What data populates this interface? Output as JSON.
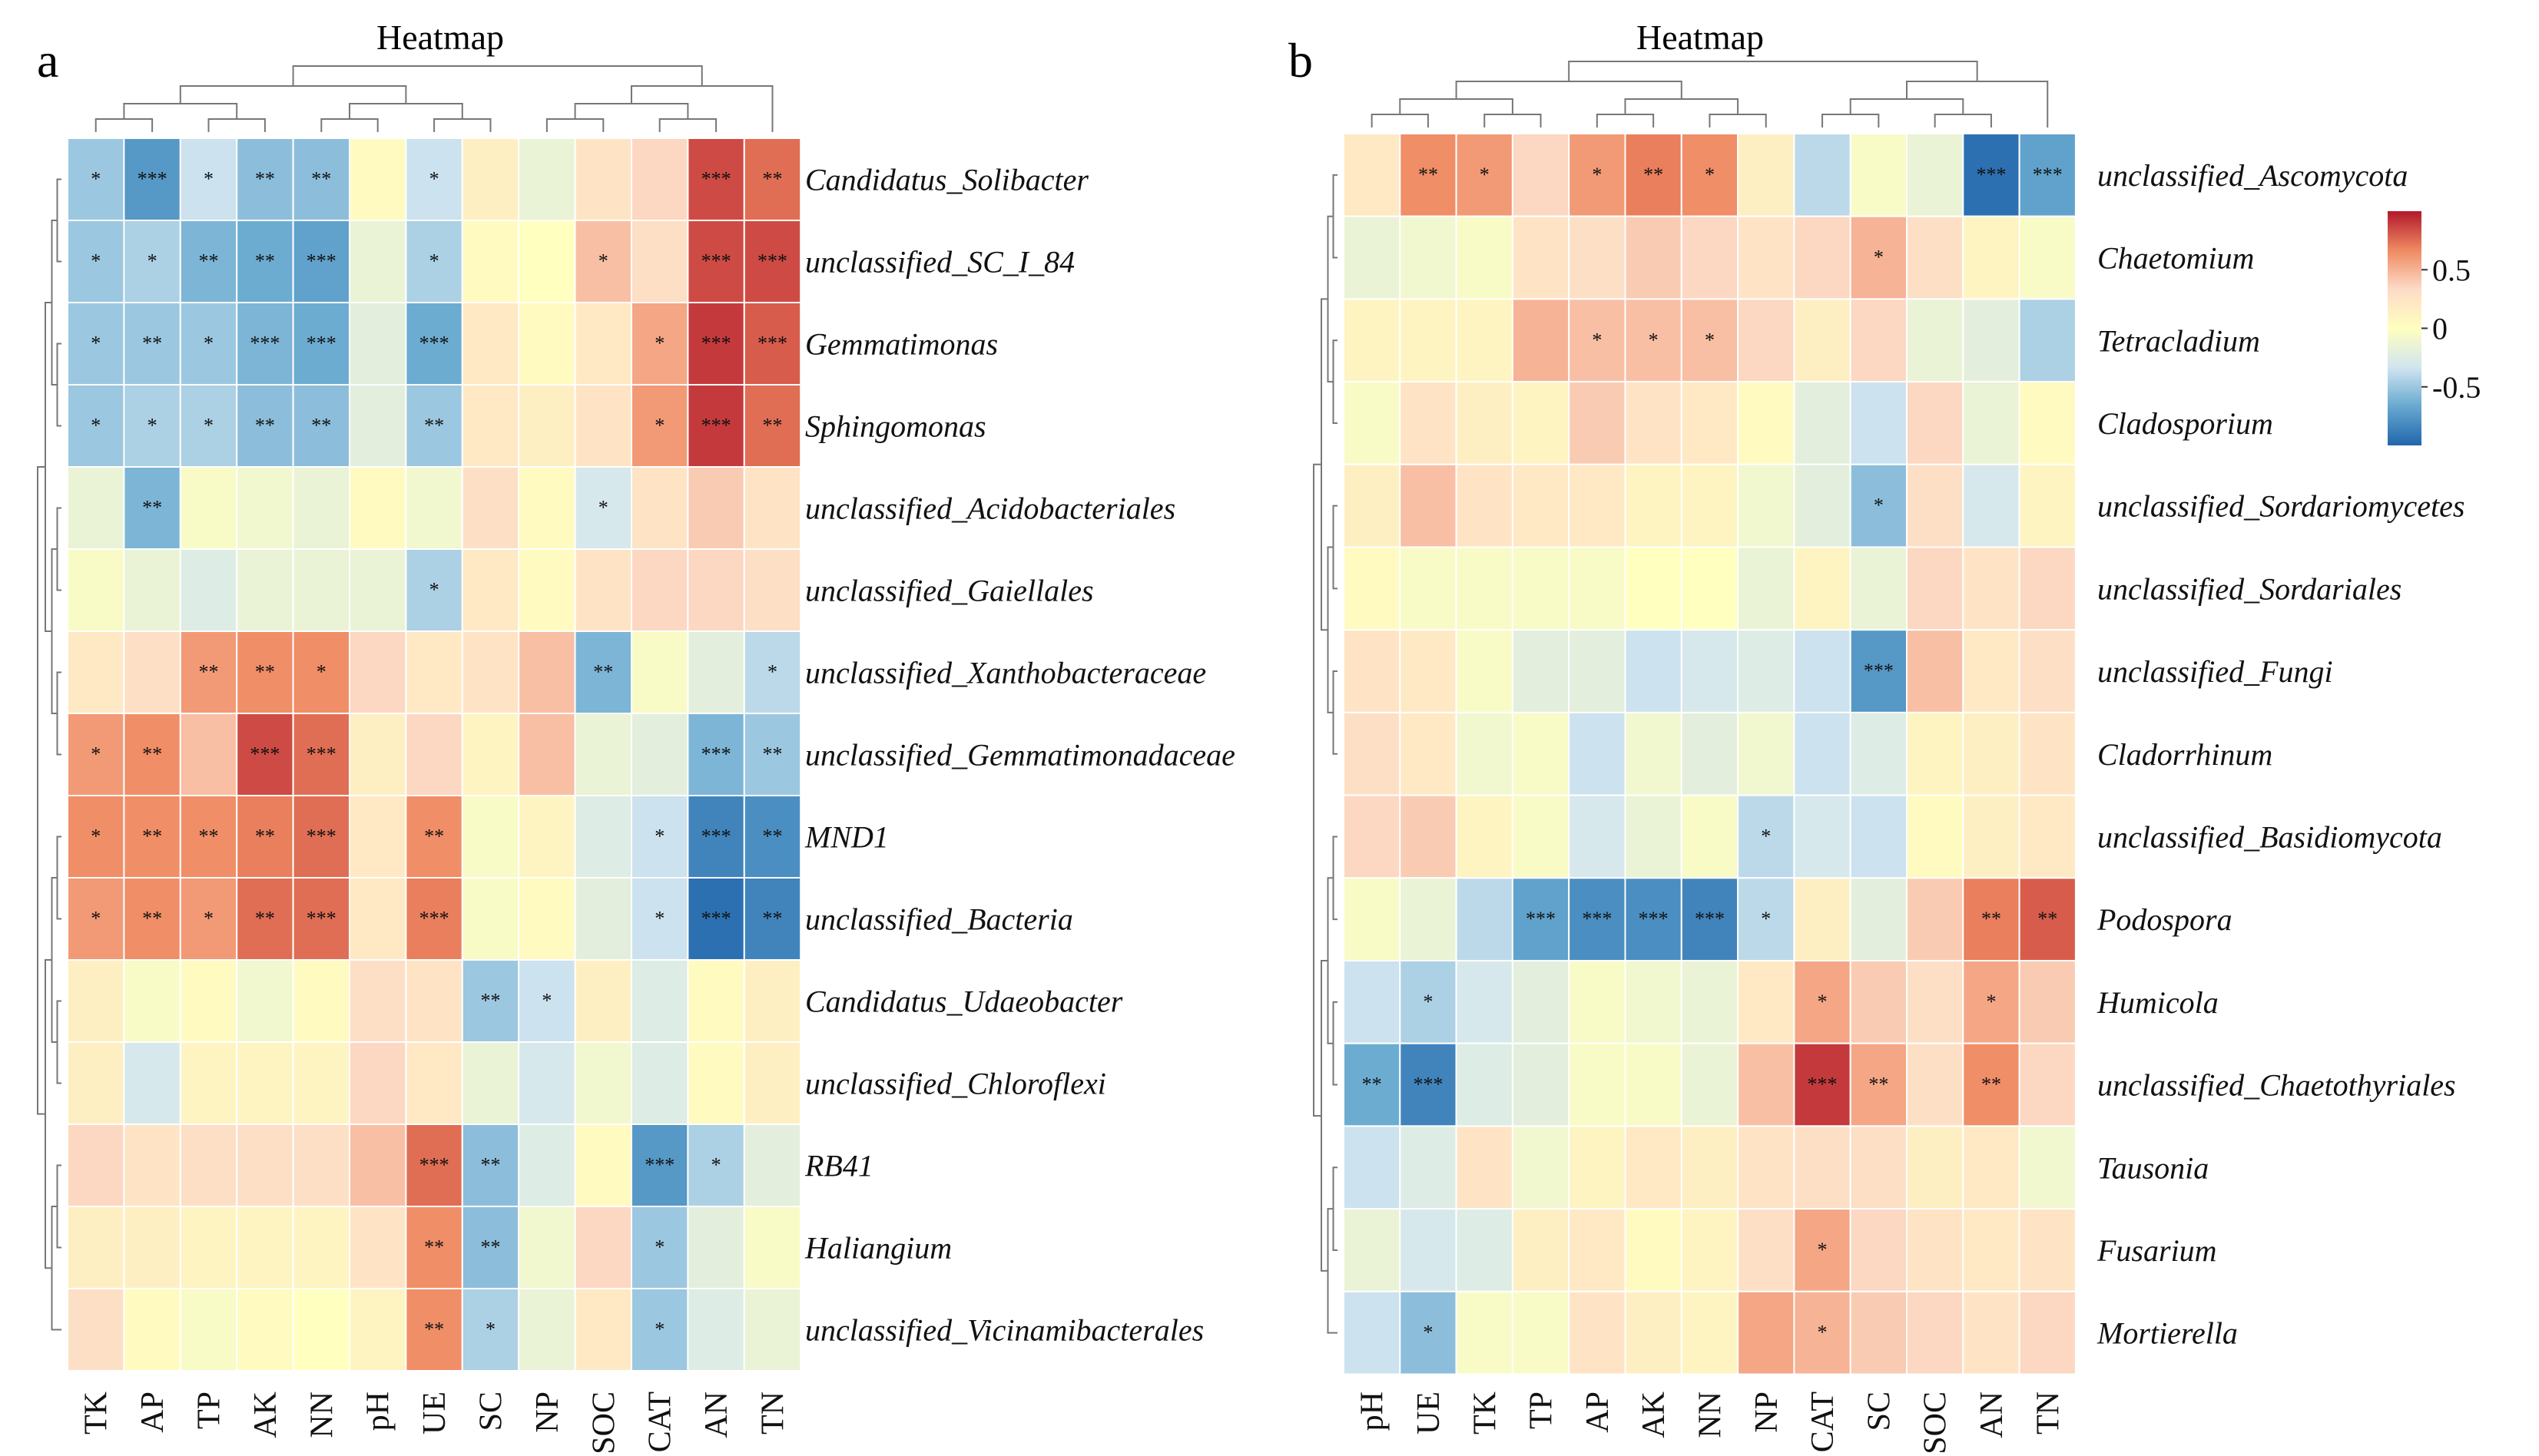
{
  "figure": {
    "panel_a_letter": "a",
    "panel_b_letter": "b"
  },
  "colorbar": {
    "ticks": [
      0.5,
      0,
      -0.5
    ],
    "tick_labels": [
      "0.5",
      "0",
      "-0.5"
    ],
    "range": [
      -1,
      1
    ],
    "colors": [
      "#2166ac",
      "#67a9cf",
      "#d1e5f0",
      "#ffffbf",
      "#fddbc7",
      "#ef8a62",
      "#b2182b"
    ]
  },
  "chart_data": [
    {
      "type": "heatmap",
      "panel": "a",
      "title": "Heatmap",
      "columns": [
        "TK",
        "AP",
        "TP",
        "AK",
        "NN",
        "pH",
        "UE",
        "SC",
        "NP",
        "SOC",
        "CAT",
        "AN",
        "TN"
      ],
      "rows": [
        "Candidatus_Solibacter",
        "unclassified_SC_I_84",
        "Gemmatimonas",
        "Sphingomonas",
        "unclassified_Acidobacteriales",
        "unclassified_Gaiellales",
        "unclassified_Xanthobacteraceae",
        "unclassified_Gemmatimonadaceae",
        "MND1",
        "unclassified_Bacteria",
        "Candidatus_Udaeobacter",
        "unclassified_Chloroflexi",
        "RB41",
        "Haliangium",
        "unclassified_Vicinamibacterales"
      ],
      "values": [
        [
          -0.5,
          -0.75,
          -0.35,
          -0.55,
          -0.55,
          0.05,
          -0.35,
          0.15,
          -0.15,
          0.25,
          0.35,
          0.85,
          0.75
        ],
        [
          -0.5,
          -0.45,
          -0.6,
          -0.65,
          -0.7,
          -0.15,
          -0.45,
          0.05,
          0.0,
          0.45,
          0.3,
          0.85,
          0.85
        ],
        [
          -0.5,
          -0.5,
          -0.5,
          -0.6,
          -0.65,
          -0.2,
          -0.65,
          0.2,
          0.05,
          0.2,
          0.55,
          0.9,
          0.8
        ],
        [
          -0.5,
          -0.45,
          -0.45,
          -0.55,
          -0.55,
          -0.2,
          -0.5,
          0.2,
          0.15,
          0.25,
          0.6,
          0.9,
          0.75
        ],
        [
          -0.15,
          -0.6,
          -0.05,
          -0.1,
          -0.15,
          0.05,
          -0.1,
          0.3,
          0.05,
          -0.3,
          0.25,
          0.4,
          0.25
        ],
        [
          -0.05,
          -0.15,
          -0.25,
          -0.15,
          -0.15,
          -0.15,
          -0.45,
          0.2,
          0.05,
          0.25,
          0.35,
          0.35,
          0.3
        ],
        [
          0.2,
          0.3,
          0.6,
          0.65,
          0.65,
          0.35,
          0.2,
          0.25,
          0.45,
          -0.6,
          -0.05,
          -0.2,
          -0.4
        ],
        [
          0.6,
          0.65,
          0.45,
          0.85,
          0.75,
          0.15,
          0.35,
          0.1,
          0.45,
          -0.15,
          -0.2,
          -0.6,
          -0.5
        ],
        [
          0.65,
          0.65,
          0.65,
          0.7,
          0.75,
          0.2,
          0.65,
          -0.05,
          0.1,
          -0.25,
          -0.35,
          -0.85,
          -0.8
        ],
        [
          0.6,
          0.65,
          0.6,
          0.75,
          0.75,
          0.2,
          0.7,
          -0.05,
          0.05,
          -0.2,
          -0.35,
          -0.95,
          -0.85
        ],
        [
          0.15,
          -0.05,
          0.05,
          -0.1,
          0.05,
          0.3,
          0.25,
          -0.5,
          -0.35,
          0.15,
          -0.25,
          0.05,
          0.15
        ],
        [
          0.15,
          -0.3,
          0.1,
          0.1,
          0.1,
          0.35,
          0.2,
          -0.15,
          -0.3,
          -0.1,
          -0.25,
          0.05,
          0.15
        ],
        [
          0.35,
          0.25,
          0.3,
          0.3,
          0.3,
          0.45,
          0.75,
          -0.55,
          -0.25,
          0.05,
          -0.75,
          -0.45,
          -0.2
        ],
        [
          0.15,
          0.15,
          0.1,
          0.1,
          0.1,
          0.25,
          0.65,
          -0.55,
          -0.1,
          0.35,
          -0.5,
          -0.2,
          -0.05
        ],
        [
          0.3,
          0.05,
          -0.05,
          0.05,
          0.0,
          0.1,
          0.65,
          -0.45,
          -0.15,
          0.2,
          -0.5,
          -0.25,
          -0.15
        ]
      ],
      "significance": [
        [
          "*",
          "***",
          "*",
          "**",
          "**",
          "",
          "*",
          "",
          "",
          "",
          "",
          "***",
          "**"
        ],
        [
          "*",
          "*",
          "**",
          "**",
          "***",
          "",
          "*",
          "",
          "",
          "*",
          "",
          "***",
          "***"
        ],
        [
          "*",
          "**",
          "*",
          "***",
          "***",
          "",
          "***",
          "",
          "",
          "",
          "*",
          "***",
          "***"
        ],
        [
          "*",
          "*",
          "*",
          "**",
          "**",
          "",
          "**",
          "",
          "",
          "",
          "*",
          "***",
          "**"
        ],
        [
          "",
          "**",
          "",
          "",
          "",
          "",
          "",
          "",
          "",
          "*",
          "",
          "",
          ""
        ],
        [
          "",
          "",
          "",
          "",
          "",
          "",
          "*",
          "",
          "",
          "",
          "",
          "",
          ""
        ],
        [
          "",
          "",
          "**",
          "**",
          "*",
          "",
          "",
          "",
          "",
          "**",
          "",
          "",
          "*"
        ],
        [
          "*",
          "**",
          "",
          "***",
          "***",
          "",
          "",
          "",
          "",
          "",
          "",
          "***",
          "**"
        ],
        [
          "*",
          "**",
          "**",
          "**",
          "***",
          "",
          "**",
          "",
          "",
          "",
          "*",
          "***",
          "**"
        ],
        [
          "*",
          "**",
          "*",
          "**",
          "***",
          "",
          "***",
          "",
          "",
          "",
          "*",
          "***",
          "**"
        ],
        [
          "",
          "",
          "",
          "",
          "",
          "",
          "",
          "**",
          "*",
          "",
          "",
          "",
          ""
        ],
        [
          "",
          "",
          "",
          "",
          "",
          "",
          "",
          "",
          "",
          "",
          "",
          "",
          ""
        ],
        [
          "",
          "",
          "",
          "",
          "",
          "",
          "***",
          "**",
          "",
          "",
          "***",
          "*",
          ""
        ],
        [
          "",
          "",
          "",
          "",
          "",
          "",
          "**",
          "**",
          "",
          "",
          "*",
          "",
          ""
        ],
        [
          "",
          "",
          "",
          "",
          "",
          "",
          "**",
          "*",
          "",
          "",
          "*",
          "",
          ""
        ]
      ]
    },
    {
      "type": "heatmap",
      "panel": "b",
      "title": "Heatmap",
      "columns": [
        "pH",
        "UE",
        "TK",
        "TP",
        "AP",
        "AK",
        "NN",
        "NP",
        "CAT",
        "SC",
        "SOC",
        "AN",
        "TN"
      ],
      "rows": [
        "unclassified_Ascomycota",
        "Chaetomium",
        "Tetracladium",
        "Cladosporium",
        "unclassified_Sordariomycetes",
        "unclassified_Sordariales",
        "unclassified_Fungi",
        "Cladorrhinum",
        "unclassified_Basidiomycota",
        "Podospora",
        "Humicola",
        "unclassified_Chaetothyriales",
        "Tausonia",
        "Fusarium",
        "Mortierella"
      ],
      "values": [
        [
          0.2,
          0.65,
          0.6,
          0.35,
          0.6,
          0.7,
          0.65,
          0.15,
          -0.4,
          -0.05,
          -0.15,
          -0.95,
          -0.7
        ],
        [
          -0.15,
          -0.1,
          -0.05,
          0.25,
          0.3,
          0.4,
          0.35,
          0.25,
          0.35,
          0.5,
          0.3,
          0.1,
          -0.05
        ],
        [
          0.1,
          0.1,
          0.1,
          0.5,
          0.45,
          0.45,
          0.45,
          0.35,
          0.15,
          0.35,
          -0.15,
          -0.2,
          -0.45
        ],
        [
          -0.05,
          0.25,
          0.15,
          0.1,
          0.4,
          0.25,
          0.2,
          0.05,
          -0.2,
          -0.35,
          0.35,
          -0.15,
          0.05
        ],
        [
          0.15,
          0.45,
          0.25,
          0.2,
          0.2,
          0.1,
          0.1,
          -0.1,
          -0.2,
          -0.55,
          0.3,
          -0.3,
          0.1
        ],
        [
          0.05,
          -0.05,
          -0.05,
          -0.05,
          -0.05,
          0.0,
          0.0,
          -0.15,
          0.1,
          -0.15,
          0.35,
          0.25,
          0.35
        ],
        [
          0.25,
          0.2,
          -0.05,
          -0.2,
          -0.2,
          -0.35,
          -0.3,
          -0.25,
          -0.35,
          -0.75,
          0.45,
          0.2,
          0.3
        ],
        [
          0.3,
          0.2,
          -0.1,
          -0.05,
          -0.35,
          -0.1,
          -0.2,
          -0.1,
          -0.35,
          -0.25,
          0.1,
          0.15,
          0.25
        ],
        [
          0.35,
          0.4,
          0.1,
          -0.05,
          -0.3,
          -0.15,
          -0.05,
          -0.4,
          -0.3,
          -0.35,
          0.05,
          0.15,
          0.2
        ],
        [
          -0.05,
          -0.15,
          -0.4,
          -0.7,
          -0.8,
          -0.8,
          -0.85,
          -0.4,
          0.15,
          -0.2,
          0.4,
          0.7,
          0.8
        ],
        [
          -0.35,
          -0.45,
          -0.3,
          -0.2,
          -0.05,
          -0.1,
          -0.15,
          0.2,
          0.55,
          0.4,
          0.3,
          0.55,
          0.4
        ],
        [
          -0.65,
          -0.85,
          -0.25,
          -0.2,
          -0.05,
          -0.05,
          -0.15,
          0.45,
          0.9,
          0.55,
          0.3,
          0.65,
          0.35
        ],
        [
          -0.35,
          -0.25,
          0.25,
          -0.1,
          0.1,
          0.2,
          0.15,
          0.25,
          0.3,
          0.3,
          0.15,
          0.2,
          -0.1
        ],
        [
          -0.15,
          -0.3,
          -0.25,
          0.15,
          0.2,
          0.05,
          0.1,
          0.3,
          0.55,
          0.35,
          0.25,
          0.2,
          0.25
        ],
        [
          -0.35,
          -0.55,
          -0.05,
          -0.05,
          0.25,
          0.15,
          0.1,
          0.55,
          0.5,
          0.4,
          0.35,
          0.25,
          0.35
        ]
      ],
      "significance": [
        [
          "",
          "**",
          "*",
          "",
          "*",
          "**",
          "*",
          "",
          "",
          "",
          "",
          "***",
          "***"
        ],
        [
          "",
          "",
          "",
          "",
          "",
          "",
          "",
          "",
          "",
          "*",
          "",
          "",
          ""
        ],
        [
          "",
          "",
          "",
          "",
          "*",
          "*",
          "*",
          "",
          "",
          "",
          "",
          "",
          ""
        ],
        [
          "",
          "",
          "",
          "",
          "",
          "",
          "",
          "",
          "",
          "",
          "",
          "",
          ""
        ],
        [
          "",
          "",
          "",
          "",
          "",
          "",
          "",
          "",
          "",
          "*",
          "",
          "",
          ""
        ],
        [
          "",
          "",
          "",
          "",
          "",
          "",
          "",
          "",
          "",
          "",
          "",
          "",
          ""
        ],
        [
          "",
          "",
          "",
          "",
          "",
          "",
          "",
          "",
          "",
          "***",
          "",
          "",
          ""
        ],
        [
          "",
          "",
          "",
          "",
          "",
          "",
          "",
          "",
          "",
          "",
          "",
          "",
          ""
        ],
        [
          "",
          "",
          "",
          "",
          "",
          "",
          "",
          "*",
          "",
          "",
          "",
          "",
          ""
        ],
        [
          "",
          "",
          "",
          "***",
          "***",
          "***",
          "***",
          "*",
          "",
          "",
          "",
          "**",
          "**"
        ],
        [
          "",
          "*",
          "",
          "",
          "",
          "",
          "",
          "",
          "*",
          "",
          "",
          "*",
          ""
        ],
        [
          "**",
          "***",
          "",
          "",
          "",
          "",
          "",
          "",
          "***",
          "**",
          "",
          "**",
          ""
        ],
        [
          "",
          "",
          "",
          "",
          "",
          "",
          "",
          "",
          "",
          "",
          "",
          "",
          ""
        ],
        [
          "",
          "",
          "",
          "",
          "",
          "",
          "",
          "",
          "*",
          "",
          "",
          "",
          ""
        ],
        [
          "",
          "*",
          "",
          "",
          "",
          "",
          "",
          "",
          "*",
          "",
          "",
          "",
          ""
        ]
      ]
    }
  ]
}
